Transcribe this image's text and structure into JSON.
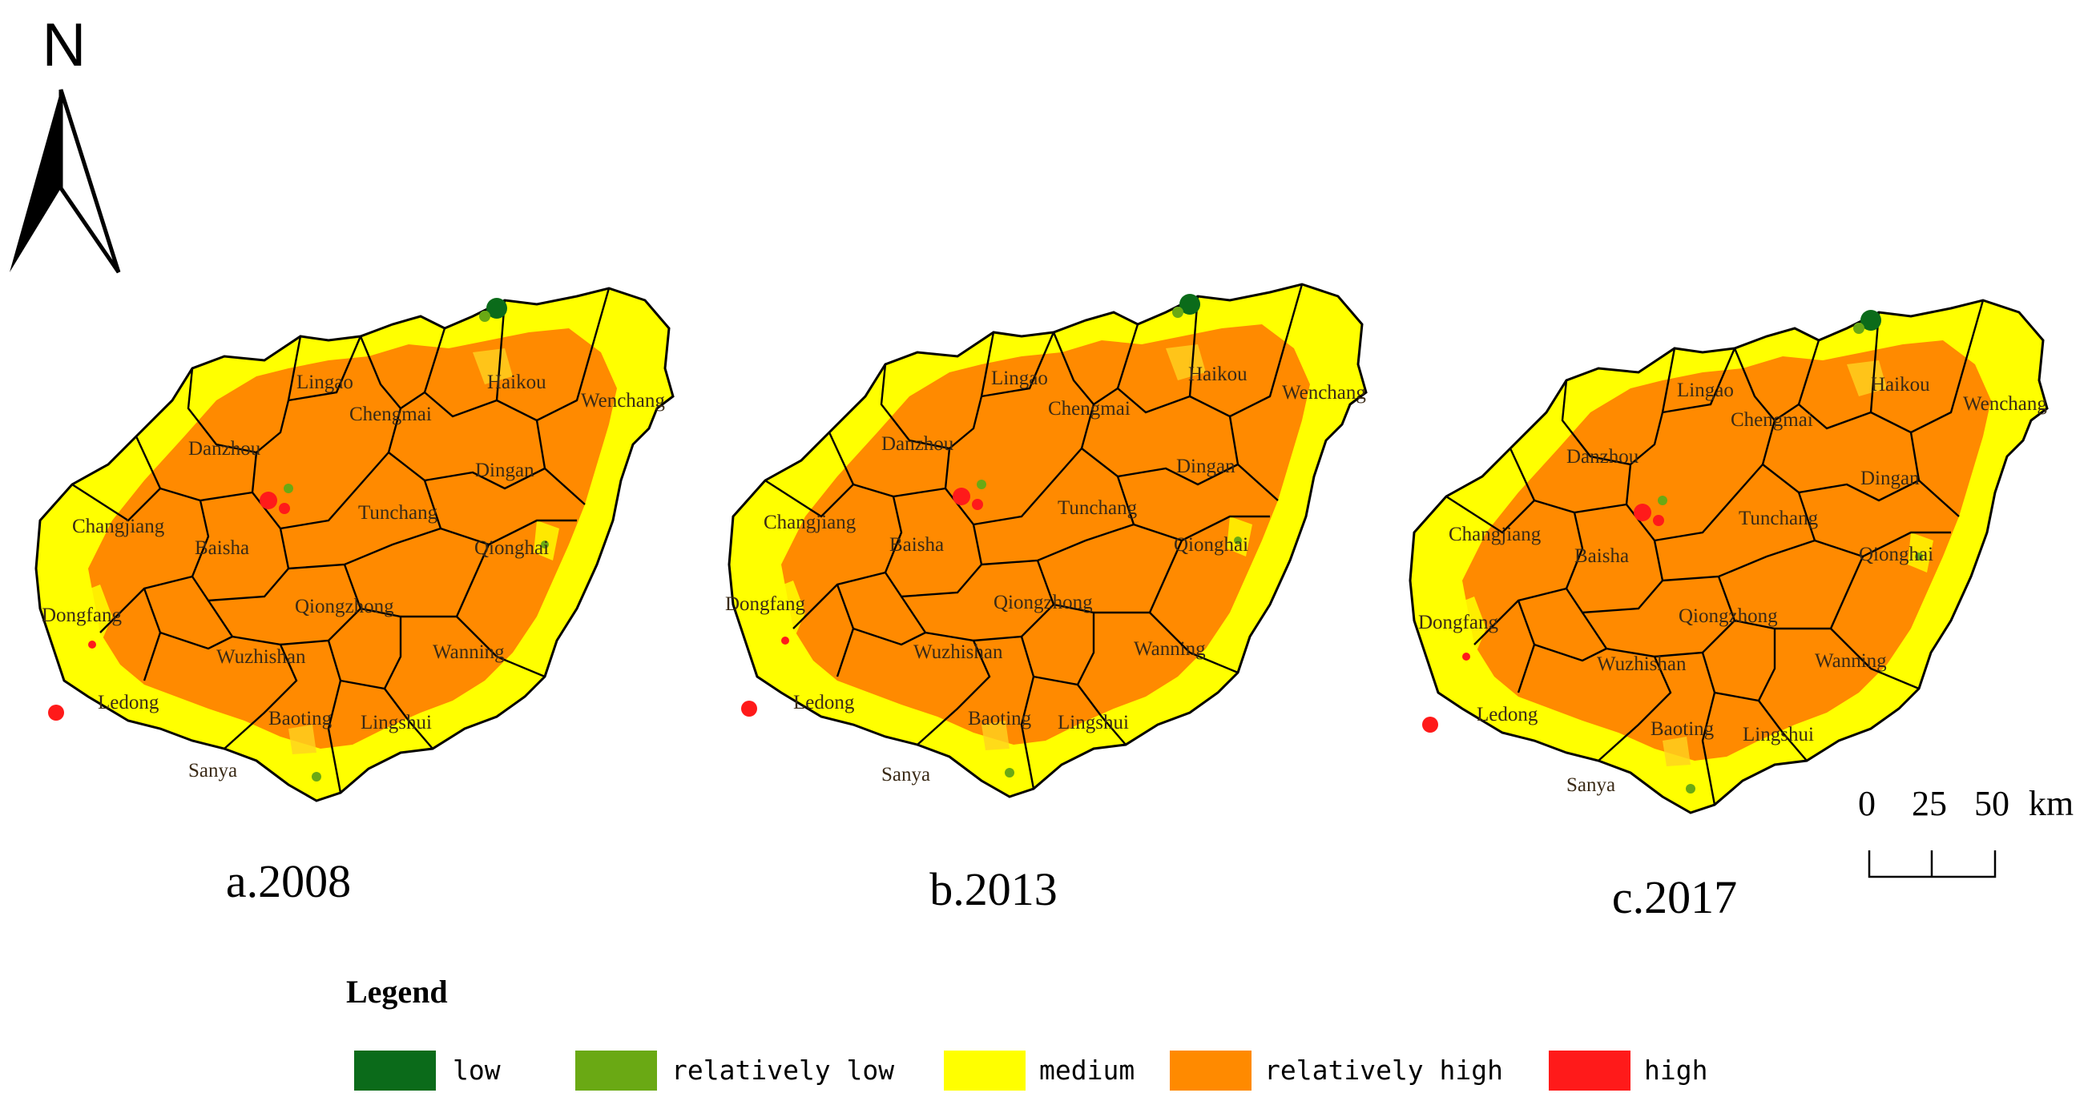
{
  "north_arrow": {
    "letter": "N"
  },
  "panels": [
    {
      "id": "a",
      "caption": "a.2008",
      "labels": [
        "Lingao",
        "Chengmai",
        "Haikou",
        "Wenchang",
        "Danzhou",
        "Dingan",
        "Changjiang",
        "Baisha",
        "Tunchang",
        "Qionghai",
        "Dongfang",
        "Qiongzhong",
        "Wanning",
        "Wuzhishan",
        "Ledong",
        "Baoting",
        "Lingshui",
        "Sanya"
      ]
    },
    {
      "id": "b",
      "caption": "b.2013",
      "labels": [
        "Lingao",
        "Chengmai",
        "Haikou",
        "Wenchang",
        "Danzhou",
        "Dingan",
        "Changjiang",
        "Baisha",
        "Tunchang",
        "Qionghai",
        "Dongfang",
        "Qiongzhong",
        "Wanning",
        "Wuzhishan",
        "Ledong",
        "Baoting",
        "Lingshui",
        "Sanya"
      ]
    },
    {
      "id": "c",
      "caption": "c.2017",
      "labels": [
        "Lingao",
        "Chengmai",
        "Haikou",
        "Wenchang",
        "Danzhou",
        "Dingan",
        "Changjiang",
        "Baisha",
        "Tunchang",
        "Qionghai",
        "Dongfang",
        "Qiongzhong",
        "Wanning",
        "Wuzhishan",
        "Ledong",
        "Baoting",
        "Lingshui",
        "Sanya"
      ]
    }
  ],
  "scale_bar": {
    "ticks": [
      "0",
      "25",
      "50"
    ],
    "unit": "km"
  },
  "legend": {
    "title": "Legend",
    "items": [
      {
        "label": "low",
        "color": "#0b6b1a"
      },
      {
        "label": "relatively low",
        "color": "#6aa914"
      },
      {
        "label": "medium",
        "color": "#ffff00"
      },
      {
        "label": "relatively high",
        "color": "#ff8a00"
      },
      {
        "label": "high",
        "color": "#ff1a1a"
      }
    ]
  },
  "colors": {
    "boundary": "#000000",
    "background": "#ffffff"
  }
}
